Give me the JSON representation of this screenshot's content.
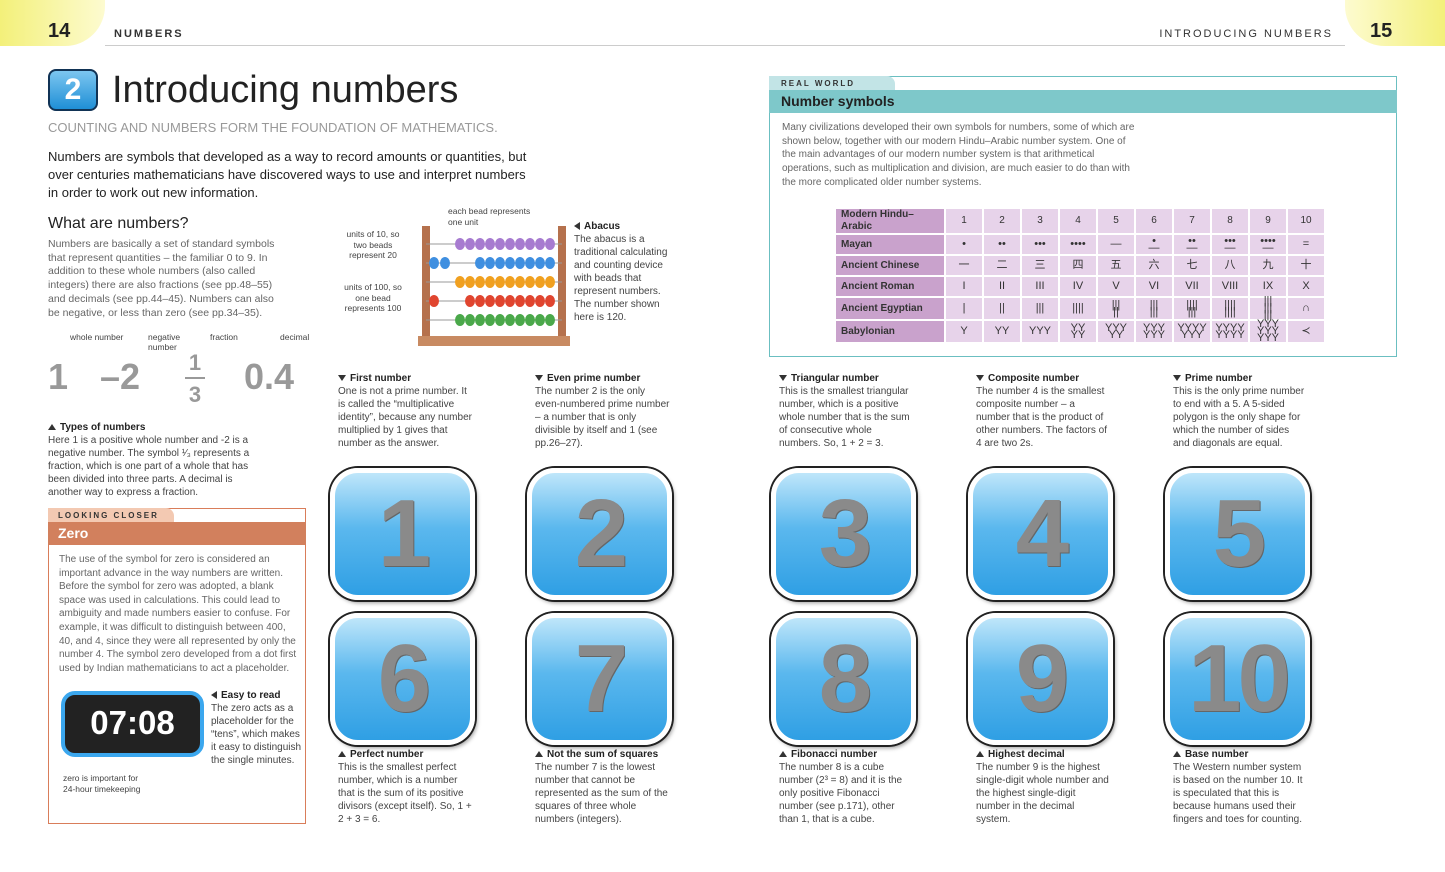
{
  "header": {
    "left_page": "14",
    "left_section": "NUMBERS",
    "right_section": "INTRODUCING NUMBERS",
    "right_page": "15"
  },
  "title": {
    "number": "2",
    "text": "Introducing numbers",
    "subtitle": "COUNTING AND NUMBERS FORM THE FOUNDATION OF MATHEMATICS."
  },
  "intro": "Numbers are symbols that developed as a way to record amounts or quantities, but over centuries mathematicians have discovered ways to use and interpret numbers in order to work out new information.",
  "what_are_numbers": {
    "heading": "What are numbers?",
    "text": "Numbers are basically a set of standard symbols that represent quantities – the familiar 0 to 9. In addition to these whole numbers (also called integers) there are also fractions (see pp.48–55) and decimals (see pp.44–45). Numbers can also be negative, or less than zero (see pp.34–35)."
  },
  "types_of_numbers": {
    "examples": [
      {
        "label": "whole number",
        "symbol": "1"
      },
      {
        "label": "negative number",
        "symbol": "–2"
      },
      {
        "label": "fraction",
        "numerator": "1",
        "denominator": "3"
      },
      {
        "label": "decimal",
        "symbol": "0.4"
      }
    ],
    "caption_title": "Types of numbers",
    "caption_text": "Here 1 is a positive whole number and -2 is a negative number. The symbol ¹⁄₃ represents a fraction, which is one part of a whole that has been divided into three parts. A decimal is another way to express a fraction."
  },
  "looking_closer": {
    "tag": "LOOKING CLOSER",
    "title": "Zero",
    "text": "The use of the symbol for zero is considered an important advance in the way numbers are written. Before the symbol for zero was adopted, a blank space was used in calculations. This could lead to ambiguity and made numbers easier to confuse. For example, it was difficult to distinguish between 400, 40, and 4, since they were all represented by only the number 4. The symbol zero developed from a dot first used by Indian mathematicians to act a placeholder.",
    "clock": "07:08",
    "caption_title": "Easy to read",
    "caption_text": "The zero acts as a placeholder for the “tens”, which makes it easy to distinguish the single minutes.",
    "clock_note": "zero is important for 24-hour timekeeping"
  },
  "abacus": {
    "label_units": "each bead represents one unit",
    "label_tens": "units of 10, so two beads represent 20",
    "label_hundreds": "units of 100, so one bead represents 100",
    "caption_title": "Abacus",
    "caption_text": "The abacus is a traditional calculating and counting device with beads that represent numbers. The number shown here is 120."
  },
  "real_world": {
    "tag": "REAL WORLD",
    "title": "Number symbols",
    "text": "Many civilizations developed their own symbols for numbers, some of which are shown below, together with our modern Hindu–Arabic number system. One of the main advantages of our modern number system is that arithmetical operations, such as multiplication and division, are much easier to do than with the more complicated older number systems.",
    "table": {
      "rows": [
        [
          "Modern Hindu–Arabic",
          "1",
          "2",
          "3",
          "4",
          "5",
          "6",
          "7",
          "8",
          "9",
          "10"
        ],
        [
          "Mayan",
          "•",
          "••",
          "•••",
          "••••",
          "—",
          "•\n—",
          "••\n—",
          "•••\n—",
          "••••\n—",
          "=\n"
        ],
        [
          "Ancient Chinese",
          "一",
          "二",
          "三",
          "四",
          "五",
          "六",
          "七",
          "八",
          "九",
          "十"
        ],
        [
          "Ancient Roman",
          "I",
          "II",
          "III",
          "IV",
          "V",
          "VI",
          "VII",
          "VIII",
          "IX",
          "X"
        ],
        [
          "Ancient Egyptian",
          "|",
          "||",
          "|||",
          "||||",
          "|||\n||",
          "|||\n|||",
          "||||\n|||",
          "||||\n||||",
          "|||\n|||\n|||",
          "∩"
        ],
        [
          "Babylonian",
          "Y",
          "YY",
          "YYY",
          "YY\nYY",
          "YYY\nYY",
          "YYY\nYYY",
          "YYYY\nYYY",
          "YYYY\nYYYY",
          "YYY\nYYY\nYYY",
          "≺"
        ]
      ]
    }
  },
  "cards": [
    {
      "digit": "1",
      "title": "First number",
      "text": "One is not a prime number. It is called the “multiplicative identity”, because any number multiplied by 1 gives that number as the answer."
    },
    {
      "digit": "2",
      "title": "Even prime number",
      "text": "The number 2 is the only even-numbered prime number – a number that is only divisible by itself and 1 (see pp.26–27)."
    },
    {
      "digit": "3",
      "title": "Triangular number",
      "text": "This is the smallest triangular number, which is a positive whole number that is the sum of consecutive whole numbers. So, 1 + 2 = 3."
    },
    {
      "digit": "4",
      "title": "Composite number",
      "text": "The number 4 is the smallest composite number – a number that is the product of other numbers. The factors of 4 are two 2s."
    },
    {
      "digit": "5",
      "title": "Prime number",
      "text": "This is the only prime number to end with a 5. A 5-sided polygon is the only shape for which the number of sides and diagonals are equal."
    },
    {
      "digit": "6",
      "title": "Perfect number",
      "text": "This is the smallest perfect number, which is a number that is the sum of its positive divisors (except itself). So, 1 + 2 + 3 = 6."
    },
    {
      "digit": "7",
      "title": "Not the sum of squares",
      "text": "The number 7 is the lowest number that cannot be represented as the sum of the squares of three whole numbers (integers)."
    },
    {
      "digit": "8",
      "title": "Fibonacci number",
      "text": "The number 8 is a cube number (2³ = 8) and it is the only positive Fibonacci number (see p.171), other than 1, that is a cube."
    },
    {
      "digit": "9",
      "title": "Highest decimal",
      "text": "The number 9 is the highest single-digit whole number and the highest single-digit number in the decimal system."
    },
    {
      "digit": "10",
      "title": "Base number",
      "text": "The Western number system is based on the number 10. It is speculated that this is because humans used their fingers and toes for counting."
    }
  ]
}
